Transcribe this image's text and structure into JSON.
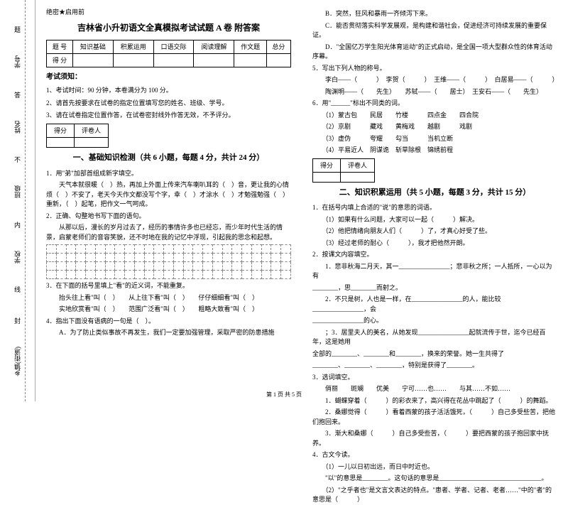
{
  "secret": "绝密★启用前",
  "title": "吉林省小升初语文全真模拟考试试题 A 卷 附答案",
  "score_headers": [
    "题 号",
    "知识基础",
    "积累运用",
    "口语交际",
    "阅读理解",
    "作文题",
    "总分"
  ],
  "score_row_label": "得 分",
  "notice_head": "考试须知：",
  "notice1": "1、考试时间：90 分钟，本卷满分为 100 分。",
  "notice2": "2、请首先按要求在试卷的指定位置填写您的姓名、班级、学号。",
  "notice3": "3、请在试卷指定位置作答，在试卷密封线外作答无效，不予评分。",
  "scorer_h1": "得分",
  "scorer_h2": "评卷人",
  "section1": "一、基础知识检测（共 6 小题，每题 4 分，共计 24 分）",
  "q1_1": "1．用\"弟\"加部首组成新字填空。",
  "q1_1b": "　　天气本就很暖（　）热，再加上外面上传来汽车喇叭耳的（　）音，更让我的心情烦（　）不安了，老天今天作文都没写个字，幸（　）才涂水（　）才勉强勉强（　）重新，（　）起笔，把作文一气呵成。",
  "q1_2": "2．正确、勾整地书写下面的语句。",
  "q1_2b": "　　从那以后，漫长的岁月过去了，经历的事情许多也已经忘，而少年时代生活的情景，启蒙老师们的音容笑貌，还不时地在我的记忆中浮现，引起我的思念和起想。",
  "q1_3": "3．在下面的括号里填上\"看\"的近义词，不能重复。",
  "q1_3a": "　　抬头往上看\"叫（　）　　从上往下看\"叫（　）　　仔仔细细看\"叫（　）",
  "q1_3b": "　　实地欣赏看\"叫（　）　　范围广泛看\"叫（　）　　粗略大致看\"叫（　）",
  "q1_4": "4．指出下面没有语病的一句是（　）。",
  "q1_4a": "　　A．为了防止类似事故不再发生，我们一定要加强管理，采取严密的防患措施",
  "q1_4b": "　　B．突然，狂风和暴雨一齐倾泻下来。",
  "q1_4c": "　　C．能否贯彻落实科学发展观，是构建和谐社会，促进经济可持续发展的重要保证。",
  "q1_4d": "　　D．\"全国亿万学生阳光体育运动\"的正式启动，是全国一项大型群众性的体育活动序幕。",
  "q1_5": "5．写出下列人物的称号。",
  "q1_5a": "　　李白——（　　　）　李贺（　　　）　王维——（　　　）　白居易——（　　　）",
  "q1_5b": "　　陶渊明——（　　先生）　　苏轼——（　　居士）　王安石——（　　先生）",
  "q1_6": "6．用\"______\"标出不同类的词。",
  "q1_6a": "　　（1）蒙古包　　民居　　竹楼　　　四点金　　四合院",
  "q1_6b": "　　（2）京剧　　　藏戏　　黄梅戏　　越剧　　　戏剧",
  "q1_6c": "　　（3）虚伪　　　夸耀　　勾当　　　当机立断",
  "q1_6d": "　　（4）平易近人　阴谋诡　斩草除根　锦绣前程",
  "section2": "二、知识积累运用（共 5 小题，每题 3 分，共计 15 分）",
  "q2_1": "1．在括号内填上合适的\"说\"的意思的词语。",
  "q2_1a": "　　（1）如果有什么问题，大家可以一起（　　　）解决。",
  "q2_1b": "　　（2）他把情绪向朋友人们（　　　）了，才真心好受了些。",
  "q2_1c": "　　（3）经过老师的耐心（　　　），我才把他然开朗。",
  "q2_2": "2．按课文内容填空。",
  "q2_2a": "　　1．悲非秋海二月天，其一________________；悲非秋之所；一人抵所，一心以为有",
  "q2_2b": "________，思________而射之。",
  "q2_2c": "　　2．不只是树，人也是一样，在________________的人，能比较________________，会",
  "q2_2d": "________________的心。",
  "q2_2e": "　　；3．居里夫人的美名，从她发现________________起就流传于世，迄今已经百年，这是她用",
  "q2_2f": "全部的________、________和________，换来的荣誉。她一生共得了",
  "q2_2g": "________、________、________，特别是获得了________。",
  "q2_3": "3．选词填空。",
  "q2_3w": "　　俏丽　　斑斓　　优美　　宁可……也……　　与其……不如……",
  "q2_3a": "　　1．蝴蝶穿着（　　　）的彩衣来了，高兴得在花丛中跳起了（　　　）的舞蹈。",
  "q2_3b": "　　2．桑娜觉得（　　　）看着西蒙的孩子活活饿死，（　　　）自己多受些苦，把他们抱回来。",
  "q2_3c": "　　3．渐大和桑娜（　　　）自己多受些苦，（　　　）要把西蒙的孩子抱回家中抚养。",
  "q2_4": "4．古文今读。",
  "q2_4a": "　　（1）一儿以日初出远，而日中时近也。",
  "q2_4b": "　　\"以\"的意思是________。这句话的意思是________________________________。",
  "q2_4c": "　　（2）\"之乎者也\"是文言文表达的特点。\"患者、学者、记者、老者……\"中的\"者\"的意思是（　　　）",
  "sidebar": {
    "l1": "题",
    "l2": "学号",
    "l3": "答",
    "l4": "姓名",
    "l5": "不",
    "l6": "班级",
    "l7": "内",
    "l8": "学校",
    "l9": "线",
    "l10": "封",
    "l11": "乡镇(街道)"
  },
  "footer": "第 1 页 共 5 页"
}
